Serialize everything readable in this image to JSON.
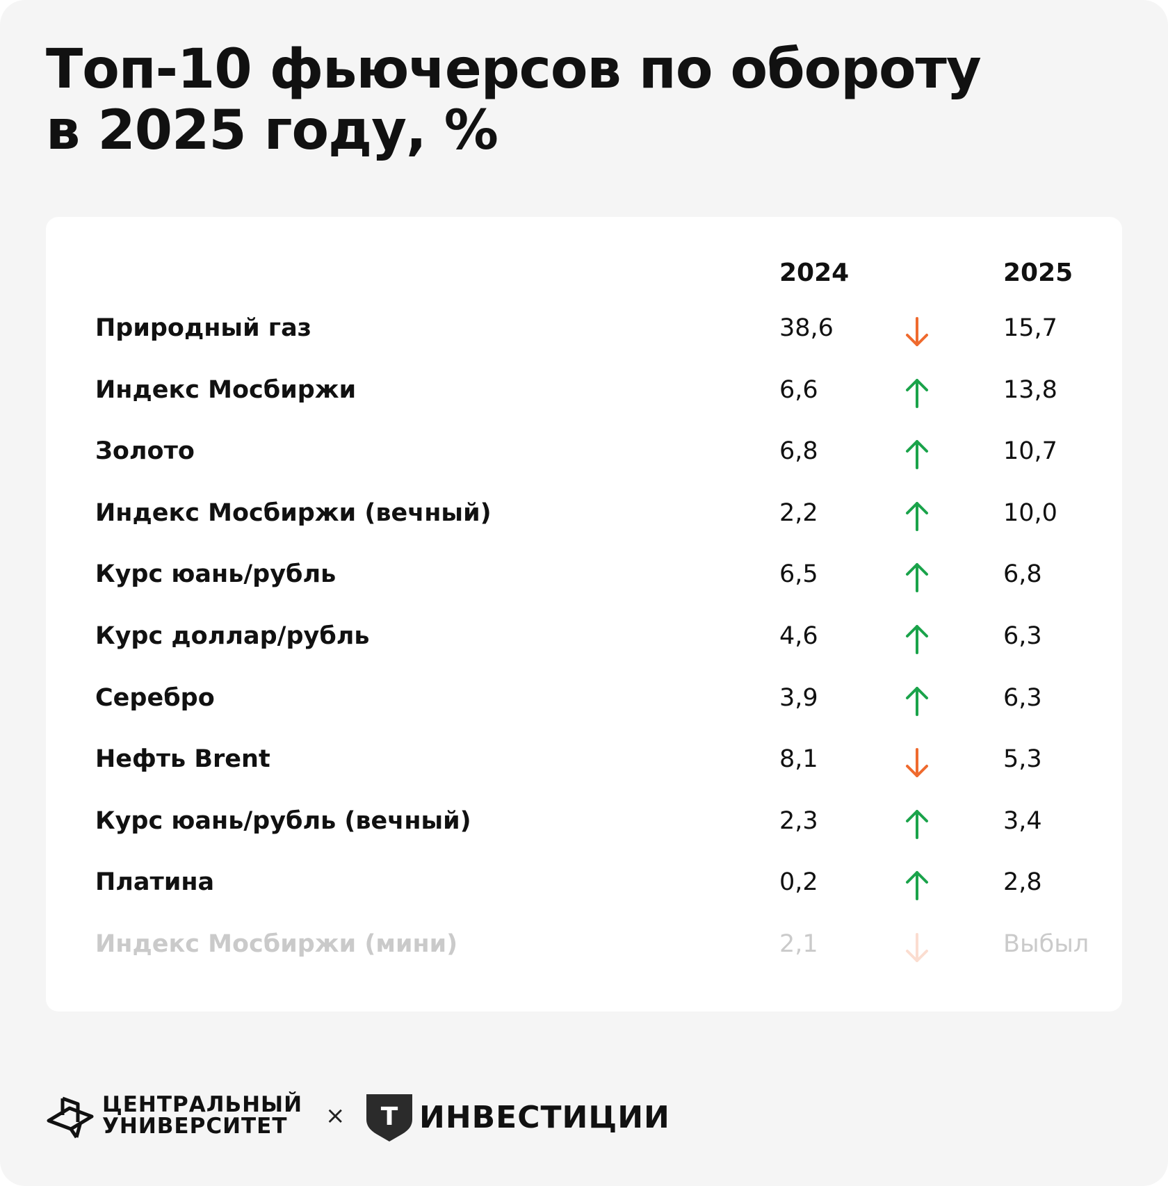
{
  "title": {
    "line1": "Топ-10 фьючерсов по обороту",
    "line2": "в 2025 году, %"
  },
  "colors": {
    "up": "#1aa34a",
    "down": "#ef6a2e"
  },
  "chart_data": {
    "type": "table",
    "title": "Топ-10 фьючерсов по обороту в 2025 году, %",
    "columns": [
      "",
      "2024",
      "",
      "2025"
    ],
    "rows": [
      {
        "name": "Природный газ",
        "v2024": "38,6",
        "trend": "down",
        "v2025": "15,7"
      },
      {
        "name": "Индекс Мосбиржи",
        "v2024": "6,6",
        "trend": "up",
        "v2025": "13,8"
      },
      {
        "name": "Золото",
        "v2024": "6,8",
        "trend": "up",
        "v2025": "10,7"
      },
      {
        "name": "Индекс Мосбиржи (вечный)",
        "v2024": "2,2",
        "trend": "up",
        "v2025": "10,0"
      },
      {
        "name": "Курс юань/рубль",
        "v2024": "6,5",
        "trend": "up",
        "v2025": "6,8"
      },
      {
        "name": "Курс доллар/рубль",
        "v2024": "4,6",
        "trend": "up",
        "v2025": "6,3"
      },
      {
        "name": "Серебро",
        "v2024": "3,9",
        "trend": "up",
        "v2025": "6,3"
      },
      {
        "name": "Нефть Brent",
        "v2024": "8,1",
        "trend": "down",
        "v2025": "5,3"
      },
      {
        "name": "Курс юань/рубль (вечный)",
        "v2024": "2,3",
        "trend": "up",
        "v2025": "3,4"
      },
      {
        "name": "Платина",
        "v2024": "0,2",
        "trend": "up",
        "v2025": "2,8"
      },
      {
        "name": "Индекс Мосбиржи (мини)",
        "v2024": "2,1",
        "trend": "down",
        "v2025": "Выбыл",
        "faded": true
      }
    ]
  },
  "footer": {
    "cu_line1": "Центральный",
    "cu_line2": "университет",
    "separator": "×",
    "ti_text": "Инвестиции",
    "ti_mark_letter": "Т"
  }
}
